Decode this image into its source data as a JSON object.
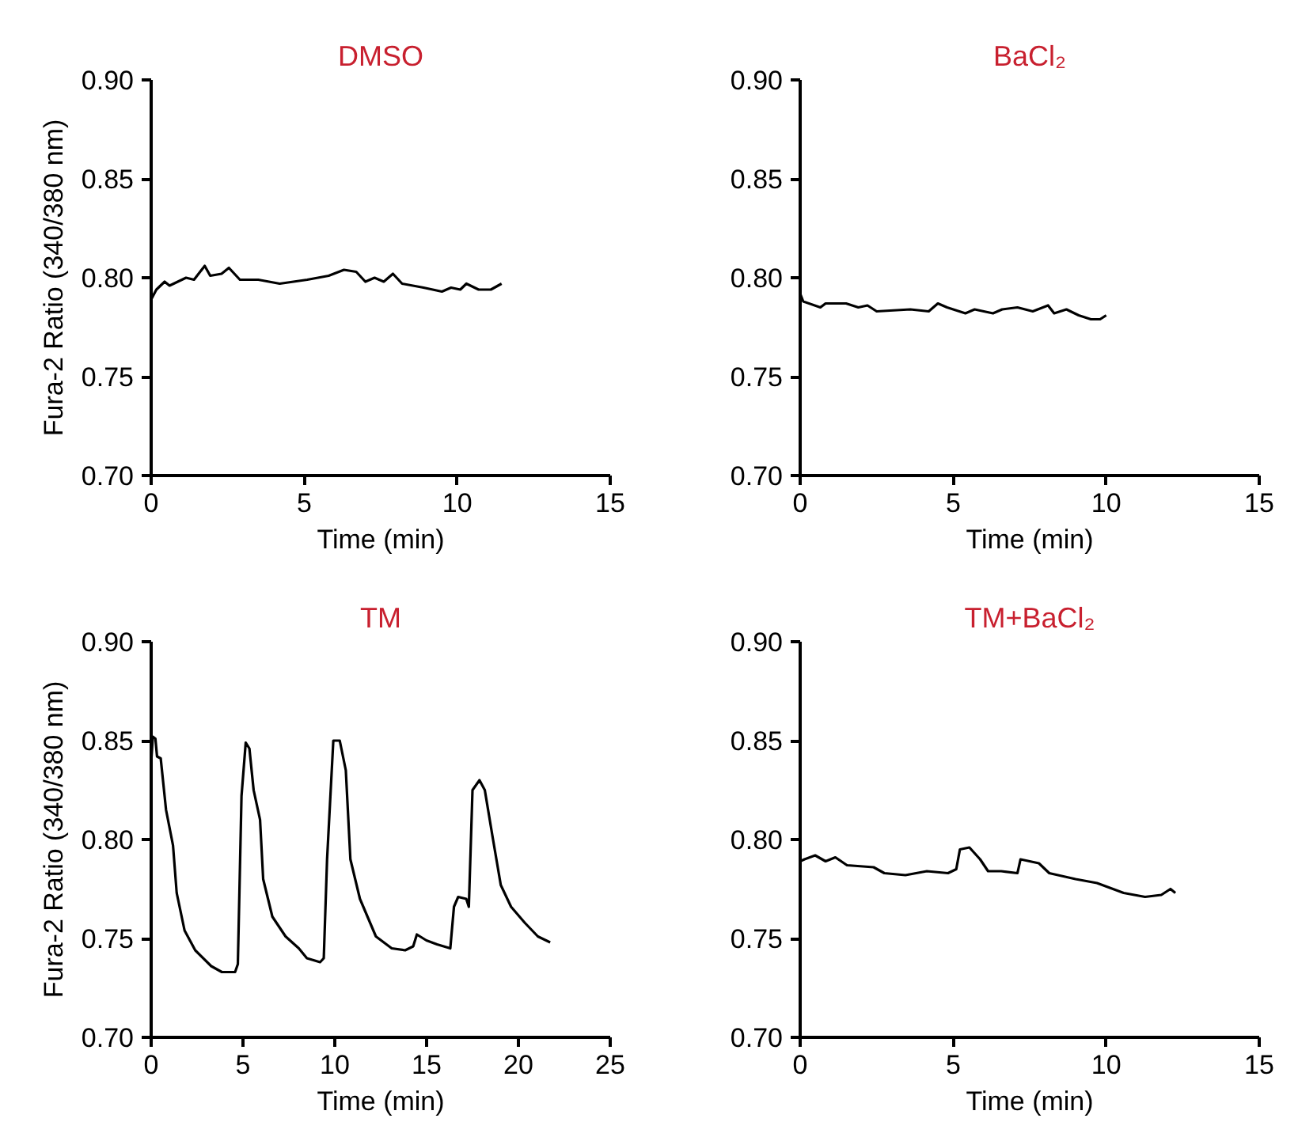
{
  "chart_data": [
    {
      "type": "line",
      "title": "DMSO",
      "xlabel": "Time (min)",
      "ylabel": "Fura-2 Ratio (340/380 nm)",
      "xlim": [
        0,
        15
      ],
      "xticks": [
        0,
        5,
        10,
        15
      ],
      "ylim": [
        0.7,
        0.9
      ],
      "yticks": [
        {
          "value": 0.7,
          "label": "0.70"
        },
        {
          "value": 0.75,
          "label": "0.75"
        },
        {
          "value": 0.8,
          "label": "0.80"
        },
        {
          "value": 0.85,
          "label": "0.85"
        },
        {
          "value": 0.9,
          "label": "0.90"
        }
      ],
      "grid": false,
      "marker": "none",
      "line_style": "solid",
      "series": [
        {
          "color": "#000000",
          "x": [
            0,
            0.17,
            0.44,
            0.6,
            1.14,
            1.4,
            1.75,
            1.93,
            2.3,
            2.54,
            2.9,
            3.5,
            4.2,
            5.1,
            5.8,
            6.3,
            6.7,
            7.0,
            7.3,
            7.6,
            7.9,
            8.2,
            8.9,
            9.5,
            9.8,
            10.1,
            10.3,
            10.7,
            11.1,
            11.45
          ],
          "values": [
            0.789,
            0.794,
            0.798,
            0.796,
            0.8,
            0.799,
            0.806,
            0.801,
            0.802,
            0.805,
            0.799,
            0.799,
            0.797,
            0.799,
            0.801,
            0.804,
            0.803,
            0.798,
            0.8,
            0.798,
            0.802,
            0.797,
            0.795,
            0.793,
            0.795,
            0.794,
            0.797,
            0.794,
            0.794,
            0.797
          ]
        }
      ]
    },
    {
      "type": "line",
      "title": "BaCl₂",
      "xlabel": "Time (min)",
      "xlim": [
        0,
        15
      ],
      "xticks": [
        0,
        5,
        10,
        15
      ],
      "ylim": [
        0.7,
        0.9
      ],
      "yticks": [
        {
          "value": 0.7,
          "label": "0.70"
        },
        {
          "value": 0.75,
          "label": "0.75"
        },
        {
          "value": 0.8,
          "label": "0.80"
        },
        {
          "value": 0.85,
          "label": "0.85"
        },
        {
          "value": 0.9,
          "label": "0.90"
        }
      ],
      "grid": false,
      "marker": "none",
      "line_style": "solid",
      "series": [
        {
          "color": "#000000",
          "x": [
            0,
            0.1,
            0.66,
            0.83,
            1.5,
            1.9,
            2.2,
            2.5,
            3.6,
            4.2,
            4.5,
            4.8,
            5.4,
            5.7,
            6.3,
            6.6,
            7.1,
            7.6,
            8.1,
            8.3,
            8.7,
            9.1,
            9.5,
            9.8,
            10.0
          ],
          "values": [
            0.792,
            0.788,
            0.785,
            0.787,
            0.787,
            0.785,
            0.786,
            0.783,
            0.784,
            0.783,
            0.787,
            0.785,
            0.782,
            0.784,
            0.782,
            0.784,
            0.785,
            0.783,
            0.786,
            0.782,
            0.784,
            0.781,
            0.779,
            0.779,
            0.781
          ]
        }
      ]
    },
    {
      "type": "line",
      "title": "TM",
      "xlabel": "Time (min)",
      "ylabel": "Fura-2 Ratio (340/380 nm)",
      "xlim": [
        0,
        25
      ],
      "xticks": [
        0,
        5,
        10,
        15,
        20,
        25
      ],
      "ylim": [
        0.7,
        0.9
      ],
      "yticks": [
        {
          "value": 0.7,
          "label": "0.70"
        },
        {
          "value": 0.75,
          "label": "0.75"
        },
        {
          "value": 0.8,
          "label": "0.80"
        },
        {
          "value": 0.85,
          "label": "0.85"
        },
        {
          "value": 0.9,
          "label": "0.90"
        }
      ],
      "grid": false,
      "marker": "none",
      "line_style": "solid",
      "series": [
        {
          "color": "#000000",
          "x": [
            0,
            0.09,
            0.23,
            0.32,
            0.52,
            0.81,
            1.19,
            1.39,
            1.82,
            2.4,
            3.27,
            3.85,
            4.57,
            4.72,
            4.92,
            5.15,
            5.35,
            5.58,
            5.93,
            6.1,
            6.6,
            7.32,
            8.04,
            8.48,
            9.2,
            9.4,
            9.58,
            9.92,
            10.27,
            10.6,
            10.85,
            11.37,
            12.24,
            13.1,
            13.83,
            14.27,
            14.47,
            14.99,
            15.57,
            16.29,
            16.49,
            16.72,
            17.16,
            17.3,
            17.5,
            17.88,
            18.17,
            18.6,
            19.04,
            19.6,
            20.34,
            21.06,
            21.73
          ],
          "values": [
            0.839,
            0.852,
            0.851,
            0.842,
            0.841,
            0.815,
            0.797,
            0.773,
            0.754,
            0.744,
            0.736,
            0.733,
            0.733,
            0.737,
            0.822,
            0.849,
            0.846,
            0.825,
            0.81,
            0.78,
            0.761,
            0.751,
            0.745,
            0.74,
            0.738,
            0.74,
            0.79,
            0.85,
            0.85,
            0.835,
            0.79,
            0.77,
            0.751,
            0.745,
            0.744,
            0.746,
            0.752,
            0.749,
            0.747,
            0.745,
            0.766,
            0.771,
            0.77,
            0.766,
            0.825,
            0.83,
            0.825,
            0.801,
            0.777,
            0.766,
            0.758,
            0.751,
            0.748
          ]
        }
      ]
    },
    {
      "type": "line",
      "title": "TM+BaCl₂",
      "xlabel": "Time (min)",
      "xlim": [
        0,
        15
      ],
      "xticks": [
        0,
        5,
        10,
        15
      ],
      "ylim": [
        0.7,
        0.9
      ],
      "yticks": [
        {
          "value": 0.7,
          "label": "0.70"
        },
        {
          "value": 0.75,
          "label": "0.75"
        },
        {
          "value": 0.8,
          "label": "0.80"
        },
        {
          "value": 0.85,
          "label": "0.85"
        },
        {
          "value": 0.9,
          "label": "0.90"
        }
      ],
      "grid": false,
      "marker": "none",
      "line_style": "solid",
      "series": [
        {
          "color": "#000000",
          "x": [
            0,
            0.14,
            0.49,
            0.83,
            1.15,
            1.53,
            2.4,
            2.75,
            3.44,
            4.14,
            4.83,
            5.1,
            5.22,
            5.53,
            5.88,
            6.14,
            6.57,
            7.1,
            7.2,
            7.8,
            8.14,
            9.0,
            9.7,
            10.57,
            11.27,
            11.8,
            12.1,
            12.26
          ],
          "values": [
            0.789,
            0.79,
            0.792,
            0.789,
            0.791,
            0.787,
            0.786,
            0.783,
            0.782,
            0.784,
            0.783,
            0.785,
            0.795,
            0.796,
            0.79,
            0.784,
            0.784,
            0.783,
            0.79,
            0.788,
            0.783,
            0.78,
            0.778,
            0.773,
            0.771,
            0.772,
            0.775,
            0.773
          ]
        }
      ]
    }
  ]
}
